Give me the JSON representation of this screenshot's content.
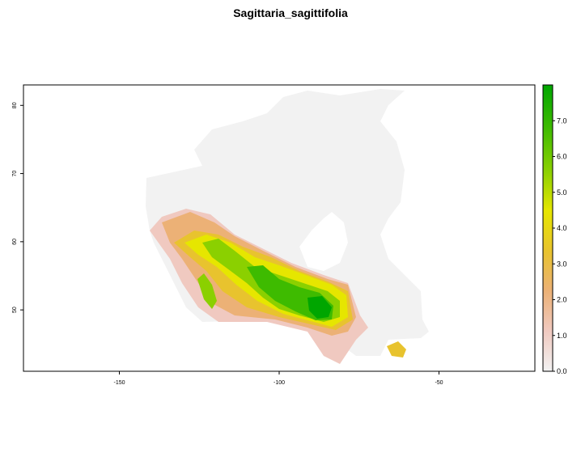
{
  "map": {
    "title": "Sagittaria_sagittifolia",
    "x_ticks": [
      -150,
      -100,
      -50
    ],
    "y_ticks": [
      50,
      60,
      70,
      80
    ],
    "xlim": [
      -180,
      -20
    ],
    "ylim": [
      41,
      83
    ],
    "legend": {
      "placement": "right",
      "range": [
        0,
        8
      ],
      "ticks": [
        "0.0",
        "1.0",
        "2.0",
        "3.0",
        "4.0",
        "5.0",
        "6.0",
        "7.0"
      ],
      "colors": [
        "#F2F2F2",
        "#F0C9C0",
        "#ECB176",
        "#E8C32E",
        "#E6E600",
        "#8BD000",
        "#3EBB00",
        "#00A600"
      ]
    },
    "land_color": "#F2F2F2"
  }
}
